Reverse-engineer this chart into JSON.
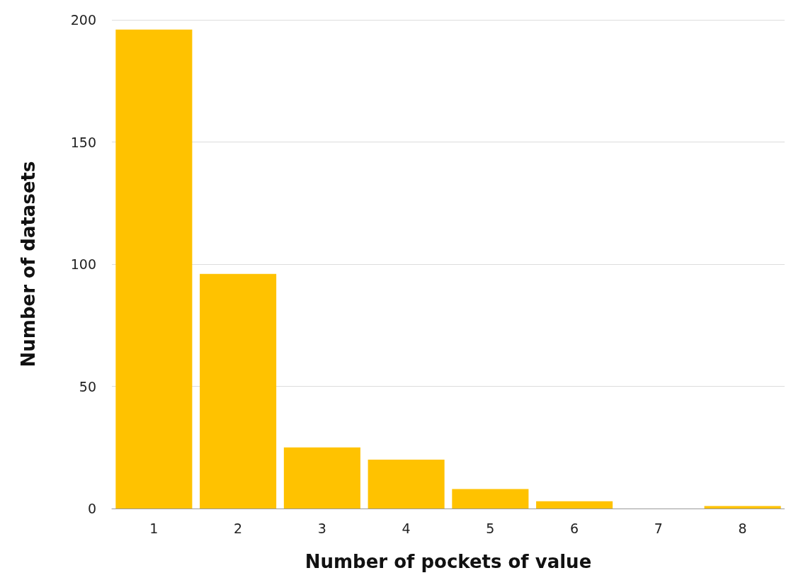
{
  "chart_data": {
    "type": "bar",
    "xlabel": "Number of pockets of value",
    "ylabel": "Number of datasets",
    "categories": [
      "1",
      "2",
      "3",
      "4",
      "5",
      "6",
      "7",
      "8"
    ],
    "values": [
      196,
      96,
      25,
      20,
      8,
      3,
      0,
      1
    ],
    "color": "#ffc200",
    "ylim": [
      0,
      200
    ],
    "yticks": [
      0,
      50,
      100,
      150,
      200
    ],
    "grid": "y"
  }
}
